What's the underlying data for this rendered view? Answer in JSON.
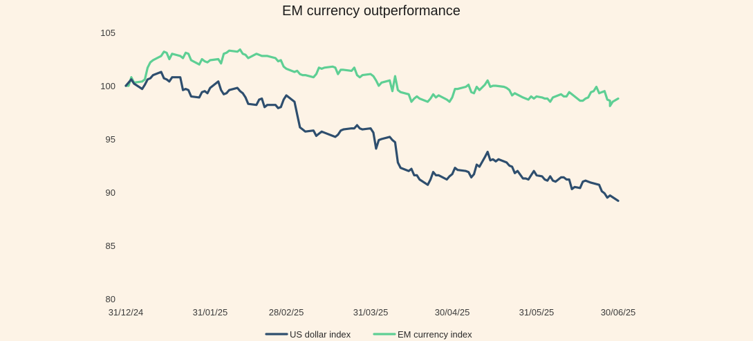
{
  "chart_data": {
    "type": "line",
    "title": "EM currency outperformance",
    "xlabel": "",
    "ylabel": "",
    "ylim": [
      80,
      105
    ],
    "yticks": [
      80,
      85,
      90,
      95,
      100,
      105
    ],
    "x_range": [
      "2024-12-31",
      "2025-06-30"
    ],
    "xtick_labels": [
      "31/12/24",
      "31/01/25",
      "28/02/25",
      "31/03/25",
      "30/04/25",
      "31/05/25",
      "30/06/25"
    ],
    "xtick_dates": [
      "2024-12-31",
      "2025-01-31",
      "2025-02-28",
      "2025-03-31",
      "2025-04-30",
      "2025-05-31",
      "2025-06-30"
    ],
    "grid": false,
    "legend_position": "bottom-center",
    "series": [
      {
        "name": "US dollar index",
        "color": "#2e4e6e",
        "points": [
          [
            "2024-12-31",
            100.0
          ],
          [
            "2025-01-02",
            100.6
          ],
          [
            "2025-01-03",
            100.2
          ],
          [
            "2025-01-06",
            99.7
          ],
          [
            "2025-01-07",
            100.1
          ],
          [
            "2025-01-08",
            100.6
          ],
          [
            "2025-01-09",
            100.7
          ],
          [
            "2025-01-10",
            101.0
          ],
          [
            "2025-01-13",
            101.3
          ],
          [
            "2025-01-14",
            100.7
          ],
          [
            "2025-01-15",
            100.6
          ],
          [
            "2025-01-16",
            100.4
          ],
          [
            "2025-01-17",
            100.8
          ],
          [
            "2025-01-20",
            100.8
          ],
          [
            "2025-01-21",
            99.6
          ],
          [
            "2025-01-22",
            99.7
          ],
          [
            "2025-01-23",
            99.6
          ],
          [
            "2025-01-24",
            99.0
          ],
          [
            "2025-01-27",
            98.9
          ],
          [
            "2025-01-28",
            99.4
          ],
          [
            "2025-01-29",
            99.5
          ],
          [
            "2025-01-30",
            99.3
          ],
          [
            "2025-01-31",
            99.8
          ],
          [
            "2025-02-03",
            100.4
          ],
          [
            "2025-02-04",
            99.6
          ],
          [
            "2025-02-05",
            99.2
          ],
          [
            "2025-02-06",
            99.3
          ],
          [
            "2025-02-07",
            99.6
          ],
          [
            "2025-02-10",
            99.8
          ],
          [
            "2025-02-11",
            99.5
          ],
          [
            "2025-02-12",
            99.3
          ],
          [
            "2025-02-13",
            98.9
          ],
          [
            "2025-02-14",
            98.3
          ],
          [
            "2025-02-17",
            98.2
          ],
          [
            "2025-02-18",
            98.7
          ],
          [
            "2025-02-19",
            98.8
          ],
          [
            "2025-02-20",
            98.0
          ],
          [
            "2025-02-21",
            98.2
          ],
          [
            "2025-02-24",
            98.2
          ],
          [
            "2025-02-25",
            97.9
          ],
          [
            "2025-02-26",
            98.0
          ],
          [
            "2025-02-27",
            98.7
          ],
          [
            "2025-02-28",
            99.1
          ],
          [
            "2025-03-03",
            98.5
          ],
          [
            "2025-03-04",
            97.3
          ],
          [
            "2025-03-05",
            96.1
          ],
          [
            "2025-03-06",
            95.9
          ],
          [
            "2025-03-07",
            95.7
          ],
          [
            "2025-03-10",
            95.8
          ],
          [
            "2025-03-11",
            95.3
          ],
          [
            "2025-03-12",
            95.5
          ],
          [
            "2025-03-13",
            95.7
          ],
          [
            "2025-03-14",
            95.6
          ],
          [
            "2025-03-17",
            95.3
          ],
          [
            "2025-03-18",
            95.2
          ],
          [
            "2025-03-19",
            95.4
          ],
          [
            "2025-03-20",
            95.8
          ],
          [
            "2025-03-21",
            95.9
          ],
          [
            "2025-03-24",
            96.0
          ],
          [
            "2025-03-25",
            96.0
          ],
          [
            "2025-03-26",
            96.3
          ],
          [
            "2025-03-27",
            96.0
          ],
          [
            "2025-03-28",
            95.9
          ],
          [
            "2025-03-31",
            96.0
          ],
          [
            "2025-04-01",
            95.6
          ],
          [
            "2025-04-02",
            94.1
          ],
          [
            "2025-04-03",
            94.9
          ],
          [
            "2025-04-04",
            95.0
          ],
          [
            "2025-04-07",
            95.2
          ],
          [
            "2025-04-08",
            94.9
          ],
          [
            "2025-04-09",
            94.7
          ],
          [
            "2025-04-10",
            92.8
          ],
          [
            "2025-04-11",
            92.3
          ],
          [
            "2025-04-14",
            92.0
          ],
          [
            "2025-04-15",
            92.2
          ],
          [
            "2025-04-16",
            91.6
          ],
          [
            "2025-04-17",
            91.6
          ],
          [
            "2025-04-18",
            91.2
          ],
          [
            "2025-04-21",
            90.7
          ],
          [
            "2025-04-22",
            91.2
          ],
          [
            "2025-04-23",
            91.9
          ],
          [
            "2025-04-24",
            91.6
          ],
          [
            "2025-04-25",
            91.6
          ],
          [
            "2025-04-28",
            91.2
          ],
          [
            "2025-04-29",
            91.5
          ],
          [
            "2025-04-30",
            91.7
          ],
          [
            "2025-05-01",
            92.3
          ],
          [
            "2025-05-02",
            92.1
          ],
          [
            "2025-05-05",
            92.0
          ],
          [
            "2025-05-06",
            91.9
          ],
          [
            "2025-05-07",
            91.4
          ],
          [
            "2025-05-08",
            91.7
          ],
          [
            "2025-05-09",
            92.6
          ],
          [
            "2025-05-10",
            92.4
          ],
          [
            "2025-05-12",
            93.3
          ],
          [
            "2025-05-13",
            93.8
          ],
          [
            "2025-05-14",
            93.0
          ],
          [
            "2025-05-15",
            93.1
          ],
          [
            "2025-05-16",
            92.9
          ],
          [
            "2025-05-17",
            93.1
          ],
          [
            "2025-05-20",
            92.8
          ],
          [
            "2025-05-21",
            92.5
          ],
          [
            "2025-05-22",
            92.4
          ],
          [
            "2025-05-23",
            91.8
          ],
          [
            "2025-05-24",
            92.0
          ],
          [
            "2025-05-26",
            91.3
          ],
          [
            "2025-05-27",
            91.3
          ],
          [
            "2025-05-28",
            91.2
          ],
          [
            "2025-05-29",
            91.6
          ],
          [
            "2025-05-30",
            92.0
          ],
          [
            "2025-05-31",
            91.6
          ],
          [
            "2025-06-02",
            91.5
          ],
          [
            "2025-06-03",
            91.2
          ],
          [
            "2025-06-04",
            91.1
          ],
          [
            "2025-06-05",
            91.5
          ],
          [
            "2025-06-06",
            91.1
          ],
          [
            "2025-06-07",
            91.0
          ],
          [
            "2025-06-09",
            91.4
          ],
          [
            "2025-06-10",
            91.4
          ],
          [
            "2025-06-11",
            91.2
          ],
          [
            "2025-06-12",
            91.2
          ],
          [
            "2025-06-13",
            90.3
          ],
          [
            "2025-06-14",
            90.5
          ],
          [
            "2025-06-16",
            90.4
          ],
          [
            "2025-06-17",
            91.0
          ],
          [
            "2025-06-18",
            91.1
          ],
          [
            "2025-06-19",
            91.0
          ],
          [
            "2025-06-20",
            90.9
          ],
          [
            "2025-06-23",
            90.7
          ],
          [
            "2025-06-24",
            90.1
          ],
          [
            "2025-06-25",
            89.9
          ],
          [
            "2025-06-26",
            89.5
          ],
          [
            "2025-06-27",
            89.7
          ],
          [
            "2025-06-30",
            89.2
          ]
        ]
      },
      {
        "name": "EM currency index",
        "color": "#5ecf94",
        "points": [
          [
            "2024-12-31",
            100.0
          ],
          [
            "2025-01-01",
            100.0
          ],
          [
            "2025-01-02",
            100.8
          ],
          [
            "2025-01-03",
            100.3
          ],
          [
            "2025-01-06",
            100.4
          ],
          [
            "2025-01-07",
            100.6
          ],
          [
            "2025-01-08",
            101.7
          ],
          [
            "2025-01-09",
            102.2
          ],
          [
            "2025-01-10",
            102.4
          ],
          [
            "2025-01-13",
            102.8
          ],
          [
            "2025-01-14",
            103.2
          ],
          [
            "2025-01-15",
            103.1
          ],
          [
            "2025-01-16",
            102.5
          ],
          [
            "2025-01-17",
            103.0
          ],
          [
            "2025-01-20",
            102.8
          ],
          [
            "2025-01-21",
            102.6
          ],
          [
            "2025-01-22",
            103.1
          ],
          [
            "2025-01-23",
            103.0
          ],
          [
            "2025-01-24",
            102.4
          ],
          [
            "2025-01-27",
            102.0
          ],
          [
            "2025-01-28",
            102.5
          ],
          [
            "2025-01-29",
            102.3
          ],
          [
            "2025-01-30",
            102.2
          ],
          [
            "2025-01-31",
            102.4
          ],
          [
            "2025-02-03",
            102.5
          ],
          [
            "2025-02-04",
            102.1
          ],
          [
            "2025-02-05",
            103.0
          ],
          [
            "2025-02-06",
            103.1
          ],
          [
            "2025-02-07",
            103.3
          ],
          [
            "2025-02-10",
            103.2
          ],
          [
            "2025-02-11",
            103.4
          ],
          [
            "2025-02-12",
            103.0
          ],
          [
            "2025-02-13",
            102.9
          ],
          [
            "2025-02-14",
            102.6
          ],
          [
            "2025-02-17",
            103.0
          ],
          [
            "2025-02-18",
            102.9
          ],
          [
            "2025-02-19",
            102.8
          ],
          [
            "2025-02-20",
            102.8
          ],
          [
            "2025-02-21",
            102.8
          ],
          [
            "2025-02-24",
            102.6
          ],
          [
            "2025-02-25",
            102.3
          ],
          [
            "2025-02-26",
            102.4
          ],
          [
            "2025-02-27",
            101.8
          ],
          [
            "2025-02-28",
            101.6
          ],
          [
            "2025-03-03",
            101.3
          ],
          [
            "2025-03-04",
            101.4
          ],
          [
            "2025-03-05",
            101.1
          ],
          [
            "2025-03-06",
            101.0
          ],
          [
            "2025-03-07",
            101.0
          ],
          [
            "2025-03-10",
            100.8
          ],
          [
            "2025-03-11",
            101.1
          ],
          [
            "2025-03-12",
            101.7
          ],
          [
            "2025-03-13",
            101.6
          ],
          [
            "2025-03-14",
            101.7
          ],
          [
            "2025-03-17",
            101.8
          ],
          [
            "2025-03-18",
            101.7
          ],
          [
            "2025-03-19",
            101.1
          ],
          [
            "2025-03-20",
            101.5
          ],
          [
            "2025-03-21",
            101.5
          ],
          [
            "2025-03-24",
            101.4
          ],
          [
            "2025-03-25",
            101.7
          ],
          [
            "2025-03-26",
            101.0
          ],
          [
            "2025-03-27",
            100.8
          ],
          [
            "2025-03-28",
            101.0
          ],
          [
            "2025-03-31",
            101.1
          ],
          [
            "2025-04-01",
            100.9
          ],
          [
            "2025-04-02",
            100.5
          ],
          [
            "2025-04-03",
            100.0
          ],
          [
            "2025-04-04",
            100.3
          ],
          [
            "2025-04-07",
            100.5
          ],
          [
            "2025-04-08",
            99.5
          ],
          [
            "2025-04-09",
            100.9
          ],
          [
            "2025-04-10",
            99.6
          ],
          [
            "2025-04-11",
            99.4
          ],
          [
            "2025-04-14",
            99.2
          ],
          [
            "2025-04-15",
            98.5
          ],
          [
            "2025-04-16",
            98.8
          ],
          [
            "2025-04-17",
            99.0
          ],
          [
            "2025-04-18",
            98.8
          ],
          [
            "2025-04-21",
            98.5
          ],
          [
            "2025-04-22",
            98.8
          ],
          [
            "2025-04-23",
            99.2
          ],
          [
            "2025-04-24",
            98.9
          ],
          [
            "2025-04-25",
            99.1
          ],
          [
            "2025-04-28",
            98.7
          ],
          [
            "2025-04-29",
            98.5
          ],
          [
            "2025-04-30",
            98.9
          ],
          [
            "2025-05-01",
            99.7
          ],
          [
            "2025-05-02",
            99.7
          ],
          [
            "2025-05-05",
            99.9
          ],
          [
            "2025-05-06",
            100.1
          ],
          [
            "2025-05-07",
            99.4
          ],
          [
            "2025-05-08",
            99.3
          ],
          [
            "2025-05-09",
            99.9
          ],
          [
            "2025-05-10",
            99.6
          ],
          [
            "2025-05-12",
            100.1
          ],
          [
            "2025-05-13",
            100.5
          ],
          [
            "2025-05-14",
            99.9
          ],
          [
            "2025-05-15",
            100.0
          ],
          [
            "2025-05-16",
            100.0
          ],
          [
            "2025-05-19",
            99.9
          ],
          [
            "2025-05-20",
            99.8
          ],
          [
            "2025-05-21",
            99.6
          ],
          [
            "2025-05-22",
            99.1
          ],
          [
            "2025-05-23",
            99.3
          ],
          [
            "2025-05-26",
            98.9
          ],
          [
            "2025-05-27",
            98.8
          ],
          [
            "2025-05-28",
            98.7
          ],
          [
            "2025-05-29",
            99.0
          ],
          [
            "2025-05-30",
            98.8
          ],
          [
            "2025-05-31",
            99.0
          ],
          [
            "2025-06-02",
            98.9
          ],
          [
            "2025-06-03",
            98.8
          ],
          [
            "2025-06-04",
            98.8
          ],
          [
            "2025-06-05",
            98.5
          ],
          [
            "2025-06-06",
            98.9
          ],
          [
            "2025-06-09",
            99.2
          ],
          [
            "2025-06-10",
            99.0
          ],
          [
            "2025-06-11",
            99.0
          ],
          [
            "2025-06-12",
            99.4
          ],
          [
            "2025-06-13",
            99.2
          ],
          [
            "2025-06-16",
            98.6
          ],
          [
            "2025-06-17",
            98.6
          ],
          [
            "2025-06-18",
            98.8
          ],
          [
            "2025-06-19",
            98.9
          ],
          [
            "2025-06-20",
            99.4
          ],
          [
            "2025-06-21",
            99.5
          ],
          [
            "2025-06-22",
            99.9
          ],
          [
            "2025-06-23",
            99.3
          ],
          [
            "2025-06-24",
            99.4
          ],
          [
            "2025-06-25",
            99.5
          ],
          [
            "2025-06-26",
            98.7
          ],
          [
            "2025-06-27",
            98.6
          ],
          [
            "2025-06-27",
            98.1
          ],
          [
            "2025-06-28",
            98.5
          ],
          [
            "2025-06-30",
            98.8
          ]
        ]
      }
    ]
  }
}
